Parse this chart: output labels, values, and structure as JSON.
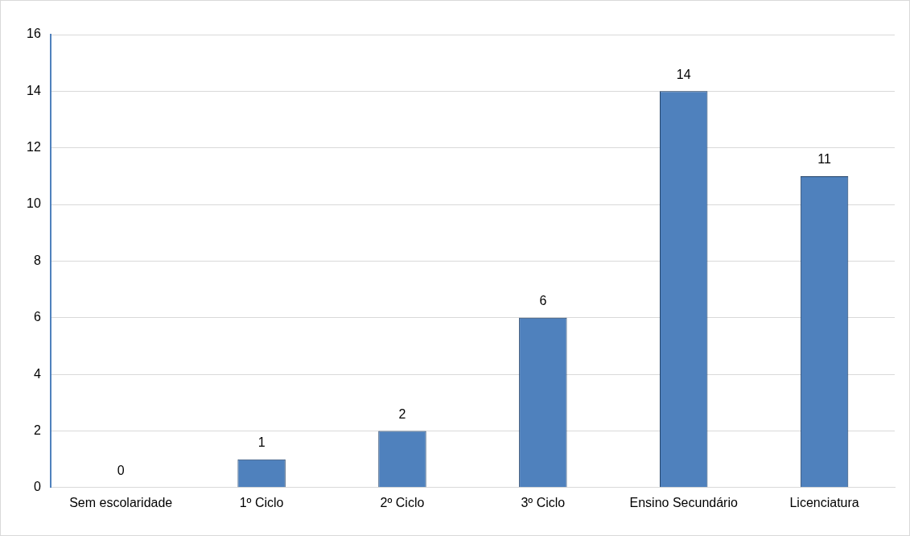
{
  "chart_data": {
    "type": "bar",
    "categories": [
      "Sem escolaridade",
      "1º Ciclo",
      "2º Ciclo",
      "3º Ciclo",
      "Ensino Secundário",
      "Licenciatura"
    ],
    "values": [
      0,
      1,
      2,
      6,
      14,
      11
    ],
    "color": "#4f81bd",
    "ylim": [
      0,
      16
    ],
    "yticks": [
      0,
      2,
      4,
      6,
      8,
      10,
      12,
      14,
      16
    ],
    "grid": "y",
    "data_labels": true
  }
}
